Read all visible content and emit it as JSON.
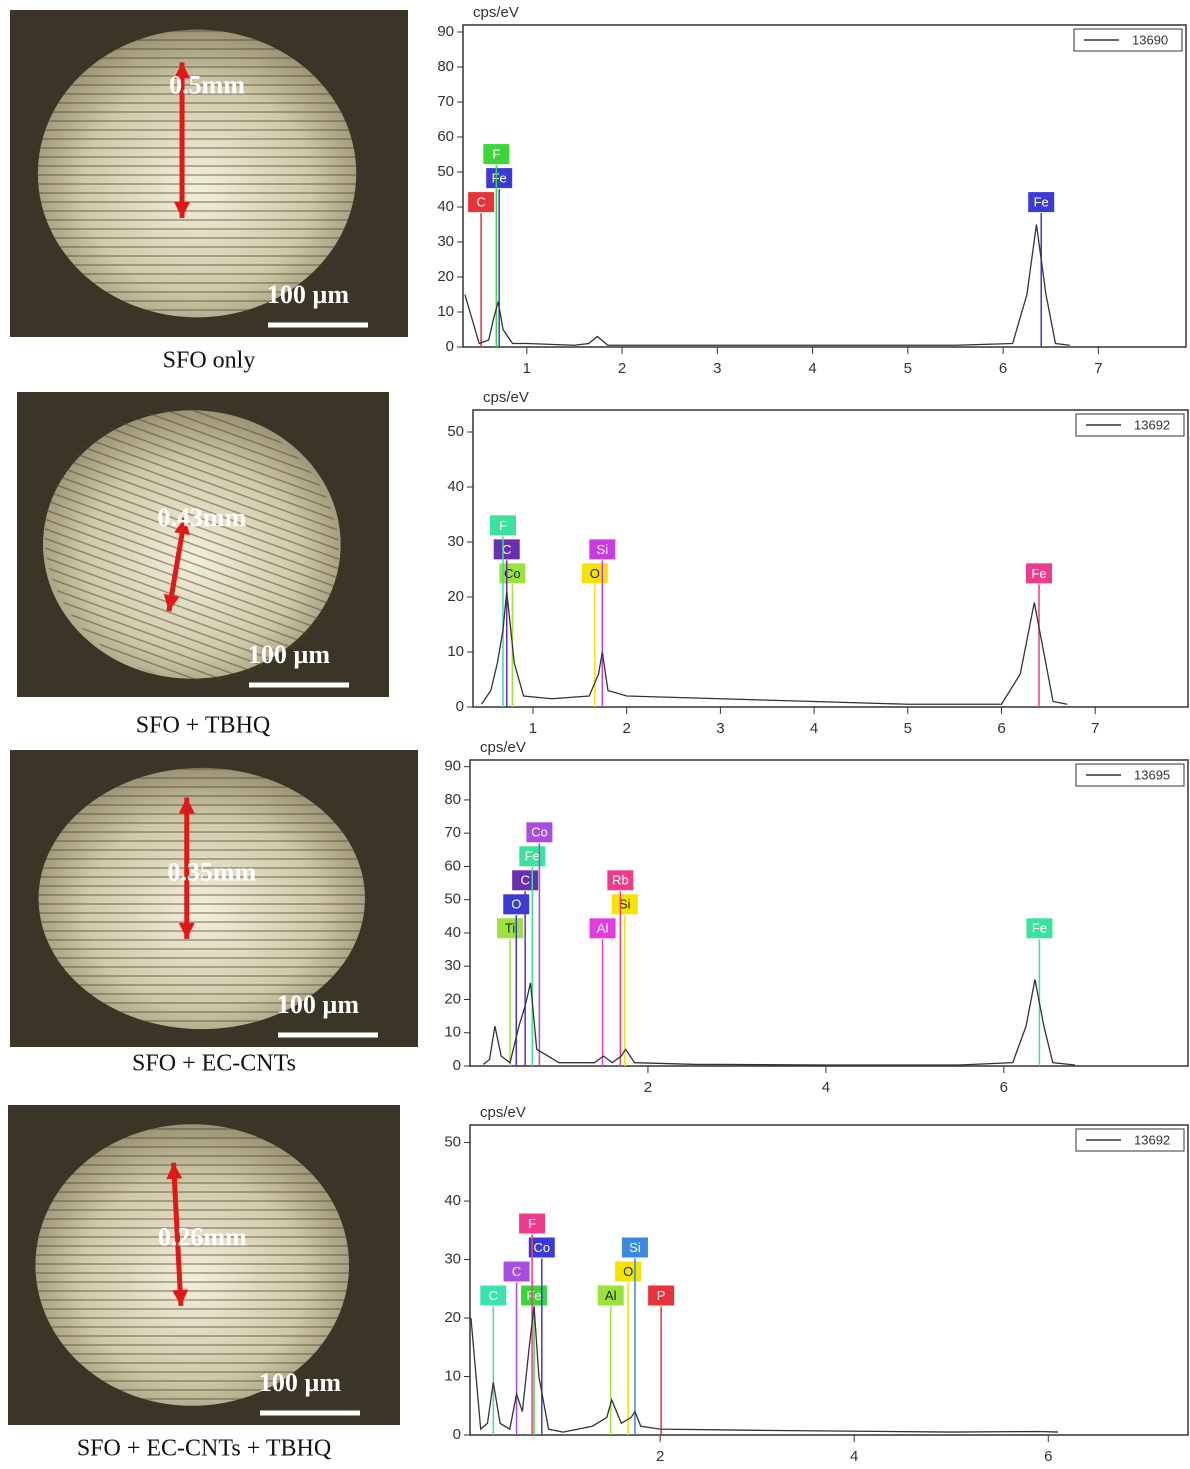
{
  "panels": [
    {
      "caption": "SFO only",
      "measurement": "0.5mm",
      "scale_bar": "100 µm"
    },
    {
      "caption": "SFO + TBHQ",
      "measurement": "0.43mm",
      "scale_bar": "100 µm"
    },
    {
      "caption": "SFO + EC-CNTs",
      "measurement": "0.35mm",
      "scale_bar": "100 µm"
    },
    {
      "caption": "SFO + EC-CNTs + TBHQ",
      "measurement": "0.26mm",
      "scale_bar": "100 µm"
    }
  ],
  "chart_data": [
    {
      "type": "line",
      "y_label": "cps/eV",
      "legend": "upper right",
      "xlim": [
        0.33,
        7.92
      ],
      "xticks": [
        1,
        2,
        3,
        4,
        5,
        6,
        7
      ],
      "ylim": [
        0,
        92
      ],
      "yticks": [
        0,
        10,
        20,
        30,
        40,
        50,
        60,
        70,
        80,
        90
      ],
      "x": [
        0.35,
        0.5,
        0.6,
        0.65,
        0.7,
        0.75,
        0.85,
        1.0,
        1.5,
        1.65,
        1.74,
        1.85,
        2.5,
        4,
        5.5,
        6.1,
        6.25,
        6.35,
        6.45,
        6.55,
        6.7
      ],
      "series": [
        {
          "name": "13690",
          "color": "#333333",
          "values": [
            15,
            1,
            2,
            8,
            13,
            5,
            1,
            1,
            0.5,
            1,
            3,
            0.5,
            0.5,
            0.5,
            0.5,
            1,
            15,
            35,
            15,
            1,
            0.5
          ]
        }
      ],
      "markers": [
        {
          "label": "C",
          "x": 0.52,
          "color": "#e8323c"
        },
        {
          "label": "Fe",
          "x": 0.71,
          "color": "#3a3ad6"
        },
        {
          "label": "F",
          "x": 0.68,
          "color": "#3ad63a"
        },
        {
          "label": "Fe",
          "x": 6.4,
          "color": "#3a3ad6"
        }
      ]
    },
    {
      "type": "line",
      "y_label": "cps/eV",
      "legend": "upper right",
      "xlim": [
        0.36,
        7.99
      ],
      "xticks": [
        1,
        2,
        3,
        4,
        5,
        6,
        7
      ],
      "ylim": [
        0,
        54
      ],
      "yticks": [
        0,
        10,
        20,
        30,
        40,
        50
      ],
      "x": [
        0.45,
        0.55,
        0.62,
        0.68,
        0.72,
        0.8,
        0.9,
        1.2,
        1.6,
        1.7,
        1.74,
        1.8,
        2.0,
        3,
        4,
        5,
        6,
        6.2,
        6.35,
        6.45,
        6.55,
        6.7
      ],
      "series": [
        {
          "name": "13692",
          "color": "#333333",
          "values": [
            0.5,
            3,
            8,
            14,
            21,
            8,
            2,
            1.5,
            2,
            6,
            10,
            3,
            2,
            1.5,
            1,
            0.5,
            0.5,
            6,
            19,
            10,
            1,
            0.5
          ]
        }
      ],
      "markers": [
        {
          "label": "Co",
          "x": 0.78,
          "color": "#9be23c"
        },
        {
          "label": "C",
          "x": 0.72,
          "color": "#6a2fb0"
        },
        {
          "label": "F",
          "x": 0.68,
          "color": "#3ce29b"
        },
        {
          "label": "O",
          "x": 1.66,
          "color": "#f5e400"
        },
        {
          "label": "Si",
          "x": 1.74,
          "color": "#c83ce2"
        },
        {
          "label": "Fe",
          "x": 6.4,
          "color": "#ec3c8c"
        }
      ]
    },
    {
      "type": "line",
      "y_label": "cps/eV",
      "legend": "upper right",
      "xlim": [
        0,
        8.07
      ],
      "xticks": [
        2,
        4,
        6
      ],
      "ylim": [
        0,
        92
      ],
      "yticks": [
        0,
        10,
        20,
        30,
        40,
        50,
        60,
        70,
        80,
        90
      ],
      "x": [
        0.15,
        0.22,
        0.28,
        0.35,
        0.45,
        0.55,
        0.62,
        0.68,
        0.75,
        1.0,
        1.4,
        1.5,
        1.6,
        1.7,
        1.75,
        1.85,
        2.5,
        4,
        5.5,
        6.1,
        6.25,
        6.35,
        6.45,
        6.55,
        6.8
      ],
      "series": [
        {
          "name": "13695",
          "color": "#333333",
          "values": [
            0.5,
            2,
            12,
            3,
            1,
            12,
            18,
            25,
            5,
            1,
            1,
            3,
            1,
            3,
            5,
            1,
            0.5,
            0.3,
            0.3,
            1,
            12,
            26,
            12,
            1,
            0.3
          ]
        }
      ],
      "markers": [
        {
          "label": "Ti",
          "x": 0.45,
          "color": "#9be23c"
        },
        {
          "label": "O",
          "x": 0.52,
          "color": "#3a3ad6"
        },
        {
          "label": "C",
          "x": 0.62,
          "color": "#6a2fb0"
        },
        {
          "label": "Fe",
          "x": 0.7,
          "color": "#3ce29b"
        },
        {
          "label": "Co",
          "x": 0.78,
          "color": "#a84ce2"
        },
        {
          "label": "Al",
          "x": 1.49,
          "color": "#e23ce2"
        },
        {
          "label": "Si",
          "x": 1.74,
          "color": "#f5e400"
        },
        {
          "label": "Rb",
          "x": 1.69,
          "color": "#ec3c8c"
        },
        {
          "label": "Fe",
          "x": 6.4,
          "color": "#3ce29b"
        }
      ]
    },
    {
      "type": "line",
      "y_label": "cps/eV",
      "legend": "upper right",
      "xlim": [
        0.04,
        7.44
      ],
      "xticks": [
        2,
        4,
        6
      ],
      "ylim": [
        0,
        53
      ],
      "yticks": [
        0,
        10,
        20,
        30,
        40,
        50
      ],
      "x": [
        0.05,
        0.15,
        0.22,
        0.28,
        0.35,
        0.45,
        0.52,
        0.58,
        0.65,
        0.7,
        0.75,
        0.85,
        1.0,
        1.3,
        1.45,
        1.5,
        1.6,
        1.7,
        1.74,
        1.8,
        2.0,
        3,
        5,
        5.9,
        6.1
      ],
      "series": [
        {
          "name": "13692",
          "color": "#333333",
          "values": [
            20,
            1,
            2,
            9,
            2,
            1,
            7,
            4,
            15,
            22,
            10,
            1,
            0.5,
            1.5,
            3,
            6,
            2,
            3,
            4,
            1.5,
            1,
            0.8,
            0.5,
            0.6,
            0.5
          ]
        }
      ],
      "markers": [
        {
          "label": "C",
          "x": 0.28,
          "color": "#3ce2b0"
        },
        {
          "label": "C",
          "x": 0.52,
          "color": "#a84ce2"
        },
        {
          "label": "Fe",
          "x": 0.7,
          "color": "#3ad63a"
        },
        {
          "label": "Co",
          "x": 0.78,
          "color": "#3a3ad6"
        },
        {
          "label": "F",
          "x": 0.68,
          "color": "#ec3c8c"
        },
        {
          "label": "Al",
          "x": 1.49,
          "color": "#9be23c"
        },
        {
          "label": "O",
          "x": 1.67,
          "color": "#f5e400"
        },
        {
          "label": "Si",
          "x": 1.74,
          "color": "#3a8ae2"
        },
        {
          "label": "P",
          "x": 2.01,
          "color": "#e8323c"
        }
      ]
    }
  ]
}
